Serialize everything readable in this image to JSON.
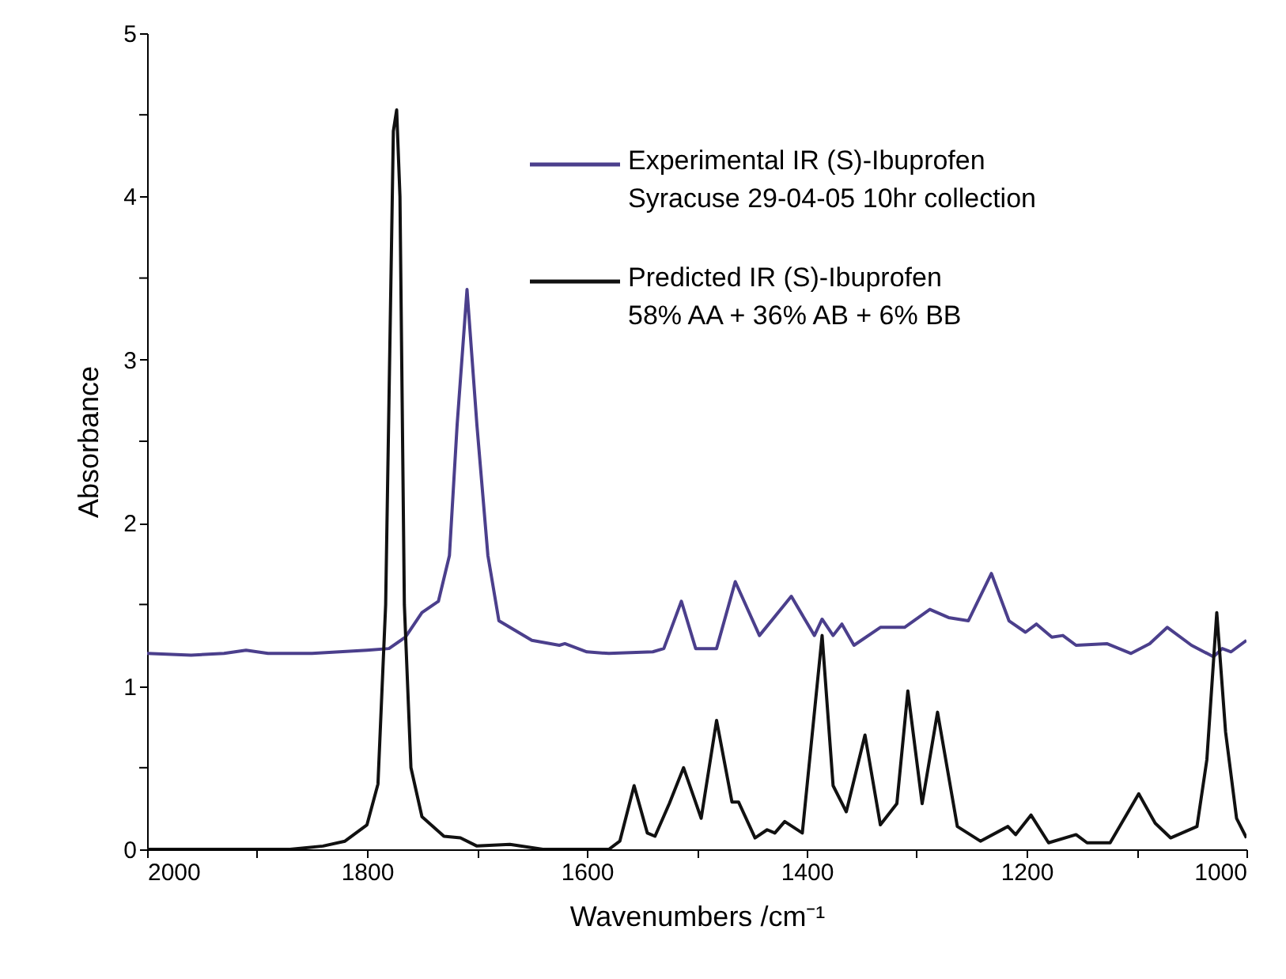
{
  "chart_data": {
    "type": "line",
    "xlabel": "Wavenumbers /cm⁻¹",
    "ylabel": "Absorbance",
    "xlim": [
      2000,
      1000
    ],
    "ylim": [
      0,
      5
    ],
    "xticks": [
      2000,
      {
        "value": 1900,
        "label": null
      },
      1800,
      {
        "value": 1700,
        "label": null
      },
      1600,
      {
        "value": 1500,
        "label": null
      },
      1400,
      {
        "value": 1300,
        "label": null
      },
      1200,
      {
        "value": 1100,
        "label": null
      },
      1000
    ],
    "yticks": [
      0,
      {
        "value": 0.5,
        "label": null
      },
      1,
      {
        "value": 1.5,
        "label": null
      },
      2,
      {
        "value": 2.5,
        "label": null
      },
      3,
      {
        "value": 3.5,
        "label": null
      },
      4,
      {
        "value": 4.5,
        "label": null
      },
      5
    ],
    "grid": false,
    "legend": "top right",
    "marker": "none",
    "line_style": "solid",
    "series": [
      {
        "name": "Experimental IR (S)-Ibuprofen\nSyracuse 29-04-05 10hr collection",
        "color": "#4b3f8c",
        "x": [
          2000,
          1960,
          1930,
          1910,
          1890,
          1850,
          1800,
          1780,
          1765,
          1750,
          1735,
          1725,
          1718,
          1709,
          1700,
          1690,
          1680,
          1650,
          1625,
          1620,
          1600,
          1580,
          1540,
          1530,
          1514,
          1501,
          1482,
          1465,
          1443,
          1414,
          1393,
          1386,
          1376,
          1368,
          1357,
          1333,
          1311,
          1288,
          1271,
          1253,
          1232,
          1216,
          1201,
          1191,
          1177,
          1167,
          1155,
          1127,
          1105,
          1088,
          1072,
          1050,
          1030,
          1022,
          1014,
          1000
        ],
        "values": [
          1.2,
          1.19,
          1.2,
          1.22,
          1.2,
          1.2,
          1.22,
          1.23,
          1.3,
          1.45,
          1.52,
          1.8,
          2.6,
          3.43,
          2.6,
          1.8,
          1.4,
          1.28,
          1.25,
          1.26,
          1.21,
          1.2,
          1.21,
          1.23,
          1.52,
          1.23,
          1.23,
          1.64,
          1.31,
          1.55,
          1.31,
          1.41,
          1.31,
          1.38,
          1.25,
          1.36,
          1.36,
          1.47,
          1.42,
          1.4,
          1.69,
          1.4,
          1.33,
          1.38,
          1.3,
          1.31,
          1.25,
          1.26,
          1.2,
          1.26,
          1.36,
          1.25,
          1.18,
          1.23,
          1.21,
          1.28
        ]
      },
      {
        "name": "Predicted IR (S)-Ibuprofen\n58% AA + 36% AB + 6% BB",
        "color": "#111111",
        "x": [
          2000,
          1870,
          1840,
          1820,
          1800,
          1790,
          1783,
          1776,
          1773,
          1770,
          1766,
          1760,
          1750,
          1730,
          1715,
          1700,
          1670,
          1640,
          1580,
          1570,
          1557,
          1545,
          1538,
          1525,
          1512,
          1496,
          1482,
          1468,
          1462,
          1447,
          1436,
          1429,
          1420,
          1404,
          1386,
          1376,
          1364,
          1347,
          1333,
          1318,
          1308,
          1295,
          1281,
          1263,
          1242,
          1217,
          1210,
          1196,
          1180,
          1155,
          1145,
          1124,
          1098,
          1083,
          1069,
          1045,
          1036,
          1027,
          1019,
          1009,
          1000
        ],
        "values": [
          0,
          0,
          0.02,
          0.05,
          0.15,
          0.4,
          1.5,
          4.4,
          4.53,
          4.0,
          1.5,
          0.5,
          0.2,
          0.08,
          0.07,
          0.02,
          0.03,
          0,
          0,
          0.05,
          0.39,
          0.1,
          0.08,
          0.28,
          0.5,
          0.19,
          0.79,
          0.29,
          0.29,
          0.07,
          0.12,
          0.1,
          0.17,
          0.1,
          1.31,
          0.39,
          0.23,
          0.7,
          0.15,
          0.28,
          0.97,
          0.28,
          0.84,
          0.14,
          0.05,
          0.14,
          0.09,
          0.21,
          0.04,
          0.09,
          0.04,
          0.04,
          0.34,
          0.16,
          0.07,
          0.14,
          0.55,
          1.45,
          0.72,
          0.19,
          0.07
        ]
      }
    ]
  }
}
